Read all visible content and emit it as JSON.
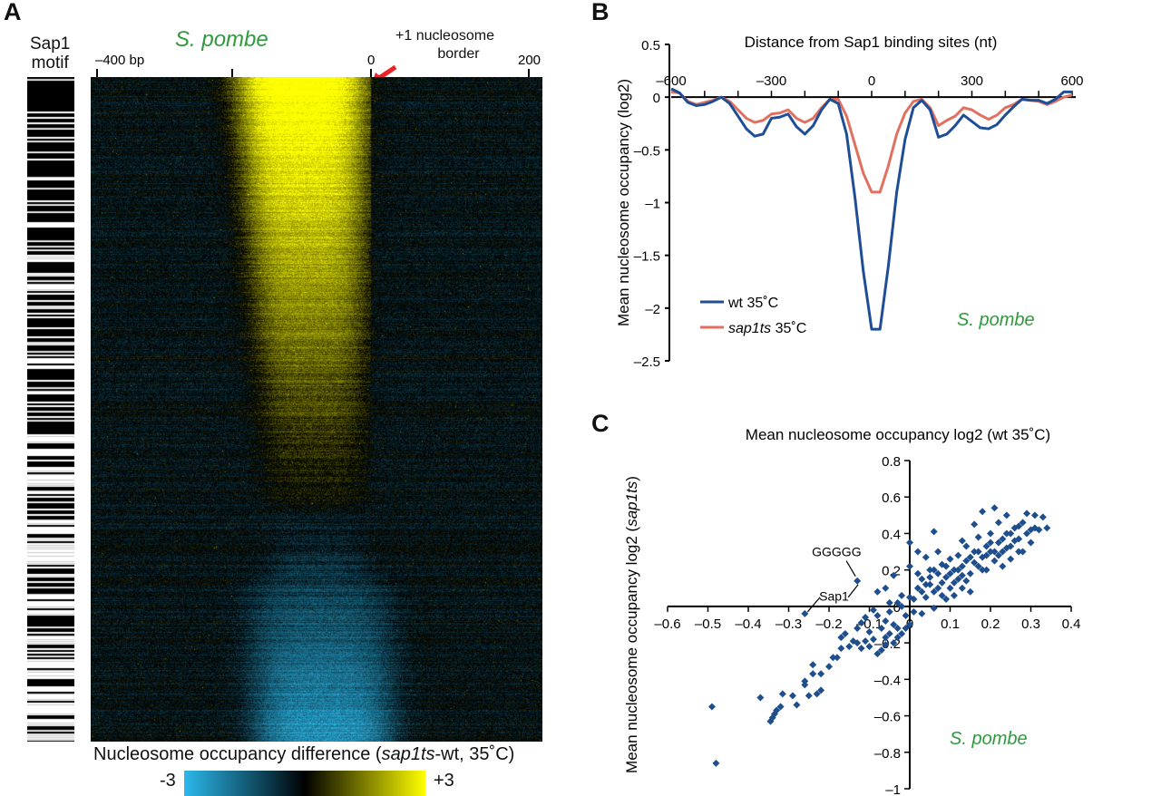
{
  "panel_a": {
    "letter": "A",
    "motif_label_line1": "Sap1",
    "motif_label_line2": "motif",
    "species": "S. pombe",
    "border_label_line1": "+1 nucleosome",
    "border_label_line2": "border",
    "colorbar_title_pre": "Nucleosome occupancy difference (",
    "colorbar_title_italic": "sap1ts",
    "colorbar_title_post": "-wt, 35˚C)",
    "colorbar_min_label": "-3",
    "colorbar_max_label": "+3",
    "colors": {
      "negative": "#2bb8ea",
      "zero": "#000000",
      "positive": "#ffff00",
      "arrow": "#e8232a"
    }
  },
  "panel_b": {
    "letter": "B",
    "species": "S. pombe"
  },
  "panel_c": {
    "letter": "C",
    "species": "S. pombe",
    "annotation_1": "GGGGG",
    "annotation_2": "Sap1"
  },
  "chart_data": [
    {
      "type": "heatmap",
      "panel": "A",
      "x_ticks": [
        {
          "value": -400,
          "label": "–400 bp"
        },
        {
          "value": -200,
          "label": ""
        },
        {
          "value": 0,
          "label": "0"
        },
        {
          "value": 200,
          "label": "200"
        }
      ],
      "color_range": [
        -3,
        3
      ],
      "description_rows": "rows sorted; yellow (positive) band upstream of +1 nucleosome border at top, cyan (negative) at bottom"
    },
    {
      "type": "line",
      "panel": "B",
      "title": "Distance from Sap1 binding sites (nt)",
      "xlabel": "Distance from Sap1 binding sites (nt)",
      "ylabel": "Mean nucleosome occupancy (log2)",
      "xlim": [
        -600,
        600
      ],
      "ylim": [
        -2.5,
        0.5
      ],
      "x_ticks": [
        -600,
        -300,
        0,
        300,
        600
      ],
      "x_tick_labels": [
        "–600",
        "–300",
        "0",
        "300",
        "600"
      ],
      "y_ticks": [
        0.5,
        0,
        -0.5,
        -1,
        -1.5,
        -2,
        -2.5
      ],
      "y_tick_labels": [
        "0.5",
        "0",
        "–0.5",
        "–1",
        "–1.5",
        "–2",
        "–2.5"
      ],
      "legend": "bottom-left",
      "x": [
        -600,
        -575,
        -550,
        -525,
        -500,
        -475,
        -450,
        -425,
        -400,
        -375,
        -350,
        -325,
        -300,
        -275,
        -250,
        -225,
        -200,
        -175,
        -150,
        -125,
        -100,
        -75,
        -50,
        -25,
        0,
        25,
        50,
        75,
        100,
        125,
        150,
        175,
        200,
        225,
        250,
        275,
        300,
        325,
        350,
        375,
        400,
        425,
        450,
        475,
        500,
        525,
        550,
        575,
        600
      ],
      "series": [
        {
          "name": "wt 35˚C",
          "name_plain": "wt",
          "name_suffix": " 35˚C",
          "color": "#1f4e96",
          "values": [
            0.08,
            0.04,
            -0.05,
            -0.08,
            -0.07,
            -0.04,
            0.0,
            -0.06,
            -0.18,
            -0.3,
            -0.37,
            -0.35,
            -0.2,
            -0.19,
            -0.16,
            -0.28,
            -0.35,
            -0.27,
            -0.12,
            -0.02,
            -0.06,
            -0.35,
            -0.95,
            -1.65,
            -2.2,
            -2.2,
            -1.6,
            -0.9,
            -0.4,
            -0.1,
            -0.03,
            -0.12,
            -0.38,
            -0.35,
            -0.27,
            -0.17,
            -0.23,
            -0.29,
            -0.3,
            -0.26,
            -0.17,
            -0.09,
            -0.02,
            -0.03,
            -0.03,
            -0.06,
            -0.02,
            0.05,
            0.05
          ]
        },
        {
          "name": "sap1ts 35˚C",
          "name_plain": "sap1ts",
          "name_suffix": " 35˚C",
          "color": "#e07060",
          "values": [
            0.05,
            0.04,
            -0.04,
            -0.07,
            -0.05,
            -0.03,
            0.0,
            -0.04,
            -0.12,
            -0.2,
            -0.24,
            -0.22,
            -0.16,
            -0.15,
            -0.12,
            -0.2,
            -0.24,
            -0.2,
            -0.1,
            -0.02,
            -0.02,
            -0.18,
            -0.45,
            -0.72,
            -0.9,
            -0.9,
            -0.65,
            -0.35,
            -0.15,
            -0.04,
            -0.02,
            -0.1,
            -0.27,
            -0.22,
            -0.18,
            -0.1,
            -0.12,
            -0.17,
            -0.21,
            -0.17,
            -0.1,
            -0.07,
            -0.02,
            -0.03,
            -0.04,
            -0.07,
            -0.04,
            0.0,
            0.02
          ]
        }
      ]
    },
    {
      "type": "scatter",
      "panel": "C",
      "title": "Mean nucleosome occupancy log2 (wt 35˚C)",
      "xlabel": "Mean nucleosome occupancy log2 (wt 35˚C)",
      "ylabel_pre": "Mean nucleosome occupancy log2 (",
      "ylabel_italic": "sap1ts",
      "ylabel_post": ")",
      "xlim": [
        -0.6,
        0.4
      ],
      "ylim": [
        -1,
        0.8
      ],
      "x_ticks": [
        -0.6,
        -0.5,
        -0.4,
        -0.3,
        -0.2,
        -0.1,
        0,
        0.1,
        0.2,
        0.3,
        0.4
      ],
      "x_tick_labels": [
        "–0.6",
        "–0.5",
        "–0.4",
        "–0.3",
        "–0.2",
        "–0.1",
        "0",
        "0.1",
        "0.2",
        "0.3",
        "0.4"
      ],
      "y_ticks": [
        0.8,
        0.6,
        0.4,
        0.2,
        0,
        -0.2,
        -0.4,
        -0.6,
        -0.8,
        -1
      ],
      "y_tick_labels": [
        "0.8",
        "0.6",
        "0.4",
        "0.2",
        "0",
        "–0.2",
        "–0.4",
        "–0.6",
        "–0.8",
        "–1"
      ],
      "color": "#1f4e8c",
      "annotated_points": [
        {
          "label": "GGGGG",
          "x": -0.13,
          "y": 0.14
        },
        {
          "label": "Sap1",
          "x": -0.26,
          "y": -0.04
        }
      ],
      "points": [
        [
          -0.49,
          -0.55
        ],
        [
          -0.48,
          -0.86
        ],
        [
          -0.37,
          -0.5
        ],
        [
          -0.345,
          -0.63
        ],
        [
          -0.34,
          -0.61
        ],
        [
          -0.335,
          -0.59
        ],
        [
          -0.33,
          -0.57
        ],
        [
          -0.32,
          -0.55
        ],
        [
          -0.315,
          -0.48
        ],
        [
          -0.29,
          -0.49
        ],
        [
          -0.28,
          -0.54
        ],
        [
          -0.26,
          -0.43
        ],
        [
          -0.26,
          -0.41
        ],
        [
          -0.25,
          -0.49
        ],
        [
          -0.24,
          -0.32
        ],
        [
          -0.24,
          -0.37
        ],
        [
          -0.23,
          -0.48
        ],
        [
          -0.22,
          -0.46
        ],
        [
          -0.22,
          -0.37
        ],
        [
          -0.2,
          -0.33
        ],
        [
          -0.19,
          -0.28
        ],
        [
          -0.18,
          -0.28
        ],
        [
          -0.17,
          -0.17
        ],
        [
          -0.17,
          -0.23
        ],
        [
          -0.16,
          -0.15
        ],
        [
          -0.15,
          -0.22
        ],
        [
          -0.14,
          -0.19
        ],
        [
          -0.13,
          -0.2
        ],
        [
          -0.12,
          -0.09
        ],
        [
          -0.12,
          -0.23
        ],
        [
          -0.11,
          -0.19
        ],
        [
          -0.1,
          -0.14
        ],
        [
          -0.1,
          -0.22
        ],
        [
          -0.09,
          -0.18
        ],
        [
          -0.08,
          -0.05
        ],
        [
          -0.08,
          -0.26
        ],
        [
          -0.07,
          -0.12
        ],
        [
          -0.07,
          -0.24
        ],
        [
          -0.06,
          -0.08
        ],
        [
          -0.06,
          -0.17
        ],
        [
          -0.05,
          -0.03
        ],
        [
          -0.05,
          -0.15
        ],
        [
          -0.04,
          -0.2
        ],
        [
          -0.04,
          -0.1
        ],
        [
          -0.03,
          0.02
        ],
        [
          -0.03,
          -0.12
        ],
        [
          -0.02,
          -0.15
        ],
        [
          -0.02,
          0.0
        ],
        [
          -0.01,
          -0.05
        ],
        [
          -0.01,
          -0.12
        ],
        [
          0.0,
          0.35
        ],
        [
          0.0,
          0.22
        ],
        [
          0.0,
          0.05
        ],
        [
          0.0,
          -0.1
        ],
        [
          -0.04,
          0.17
        ],
        [
          -0.06,
          0.1
        ],
        [
          -0.08,
          0.08
        ],
        [
          -0.09,
          -0.02
        ],
        [
          -0.11,
          -0.06
        ],
        [
          -0.13,
          -0.12
        ],
        [
          -0.06,
          -0.21
        ],
        [
          -0.03,
          -0.17
        ],
        [
          0.01,
          -0.03
        ],
        [
          0.02,
          0.1
        ],
        [
          0.02,
          0.3
        ],
        [
          0.03,
          0.15
        ],
        [
          0.03,
          -0.04
        ],
        [
          0.04,
          0.27
        ],
        [
          0.04,
          0.05
        ],
        [
          0.05,
          0.12
        ],
        [
          0.05,
          0.2
        ],
        [
          0.06,
          0.08
        ],
        [
          0.06,
          0.41
        ],
        [
          0.06,
          -0.01
        ],
        [
          0.07,
          0.18
        ],
        [
          0.07,
          0.3
        ],
        [
          0.08,
          0.13
        ],
        [
          0.08,
          0.23
        ],
        [
          0.09,
          0.04
        ],
        [
          0.09,
          0.16
        ],
        [
          0.1,
          0.26
        ],
        [
          0.1,
          0.1
        ],
        [
          0.11,
          0.2
        ],
        [
          0.11,
          0.06
        ],
        [
          0.12,
          0.28
        ],
        [
          0.12,
          0.15
        ],
        [
          0.13,
          0.36
        ],
        [
          0.13,
          0.22
        ],
        [
          0.13,
          0.1
        ],
        [
          0.14,
          0.25
        ],
        [
          0.14,
          0.33
        ],
        [
          0.15,
          0.18
        ],
        [
          0.15,
          0.08
        ],
        [
          0.16,
          0.3
        ],
        [
          0.16,
          0.45
        ],
        [
          0.17,
          0.22
        ],
        [
          0.17,
          0.38
        ],
        [
          0.18,
          0.27
        ],
        [
          0.18,
          0.52
        ],
        [
          0.19,
          0.33
        ],
        [
          0.19,
          0.2
        ],
        [
          0.2,
          0.3
        ],
        [
          0.2,
          0.4
        ],
        [
          0.21,
          0.54
        ],
        [
          0.21,
          0.25
        ],
        [
          0.22,
          0.35
        ],
        [
          0.22,
          0.46
        ],
        [
          0.23,
          0.3
        ],
        [
          0.23,
          0.22
        ],
        [
          0.24,
          0.4
        ],
        [
          0.24,
          0.5
        ],
        [
          0.25,
          0.33
        ],
        [
          0.25,
          0.26
        ],
        [
          0.26,
          0.43
        ],
        [
          0.27,
          0.37
        ],
        [
          0.28,
          0.3
        ],
        [
          0.28,
          0.46
        ],
        [
          0.29,
          0.51
        ],
        [
          0.29,
          0.4
        ],
        [
          0.3,
          0.35
        ],
        [
          0.31,
          0.43
        ],
        [
          0.31,
          0.5
        ],
        [
          0.32,
          0.42
        ],
        [
          0.33,
          0.49
        ],
        [
          0.34,
          0.43
        ],
        [
          0.02,
          0.18
        ],
        [
          0.04,
          0.12
        ],
        [
          0.06,
          0.2
        ],
        [
          0.08,
          0.06
        ],
        [
          0.1,
          0.18
        ],
        [
          0.12,
          0.2
        ],
        [
          0.14,
          0.14
        ],
        [
          0.15,
          0.27
        ],
        [
          0.17,
          0.3
        ],
        [
          0.18,
          0.2
        ],
        [
          0.19,
          0.28
        ],
        [
          0.2,
          0.35
        ],
        [
          0.21,
          0.3
        ],
        [
          0.22,
          0.28
        ],
        [
          0.23,
          0.37
        ],
        [
          0.24,
          0.32
        ],
        [
          0.25,
          0.4
        ],
        [
          0.26,
          0.36
        ],
        [
          0.27,
          0.3
        ],
        [
          0.27,
          0.44
        ],
        [
          0.3,
          0.42
        ],
        [
          0.11,
          0.13
        ],
        [
          0.13,
          0.17
        ],
        [
          0.16,
          0.24
        ],
        [
          0.09,
          0.22
        ],
        [
          0.07,
          0.1
        ],
        [
          0.05,
          0.16
        ],
        [
          0.03,
          0.08
        ],
        [
          0.01,
          0.04
        ],
        [
          -0.02,
          0.06
        ],
        [
          -0.05,
          0.02
        ]
      ]
    }
  ]
}
